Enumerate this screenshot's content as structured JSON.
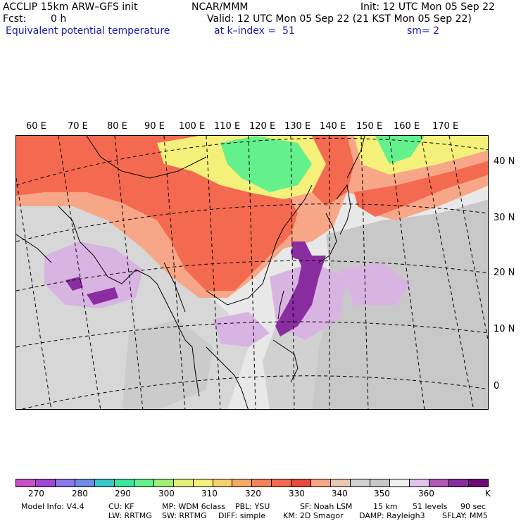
{
  "header": {
    "model": "ACCLIP 15km ARW–GFS init",
    "org": "NCAR/MMM",
    "init": "Init: 12 UTC Mon 05 Sep 22",
    "fcst_label": "Fcst:",
    "fcst_value": "0 h",
    "valid": "Valid: 12 UTC Mon 05 Sep 22 (21 KST Mon 05 Sep 22)",
    "field": "Equivalent potential temperature",
    "level": "at k–index =  51",
    "smoothing": "sm= 2"
  },
  "map": {
    "lon_labels": [
      "60 E",
      "70 E",
      "80 E",
      "90 E",
      "100 E",
      "110 E",
      "120 E",
      "130 E",
      "140 E",
      "150 E",
      "160 E",
      "170 E"
    ],
    "lat_labels": [
      "40 N",
      "30 N",
      "20 N",
      "10 N",
      "0"
    ],
    "colors": {
      "ocean_grey": "#c8c8c8",
      "light_grey": "#e8e8e8",
      "orange_red": "#f46a50",
      "salmon": "#f7a787",
      "yellow": "#f5f07a",
      "green": "#64f08c",
      "purple": "#8a2da0",
      "light_purple": "#d8b4e2"
    }
  },
  "colorbar": {
    "colors": [
      "#c850c8",
      "#a046d2",
      "#8c78e6",
      "#6e8ce6",
      "#3cc8c8",
      "#3ce6a0",
      "#64f08c",
      "#a0f078",
      "#e6f078",
      "#f5f07a",
      "#f6d26e",
      "#f8aa64",
      "#f6825a",
      "#f46a50",
      "#e84a3c",
      "#f7a787",
      "#e8c8b4",
      "#d2d2d2",
      "#c8c8c8",
      "#f0f0f0",
      "#e2c4ea",
      "#b45ab4",
      "#8a2da0",
      "#6e0a78"
    ],
    "labels": [
      "270",
      "280",
      "290",
      "300",
      "310",
      "320",
      "330",
      "340",
      "350",
      "360",
      "K"
    ]
  },
  "footer": {
    "line1": [
      "Model Info: V4.4",
      "CU: KF",
      "MP: WDM 6class",
      "PBL: YSU",
      "SF: Noah LSM",
      "15 km",
      "51 levels",
      "90 sec"
    ],
    "line2": [
      "LW: RRTMG",
      "SW: RRTMG",
      "DIFF: simple",
      "KM: 2D Smagor",
      "DAMP: Rayleigh3",
      "SFLAY: MM5"
    ]
  }
}
